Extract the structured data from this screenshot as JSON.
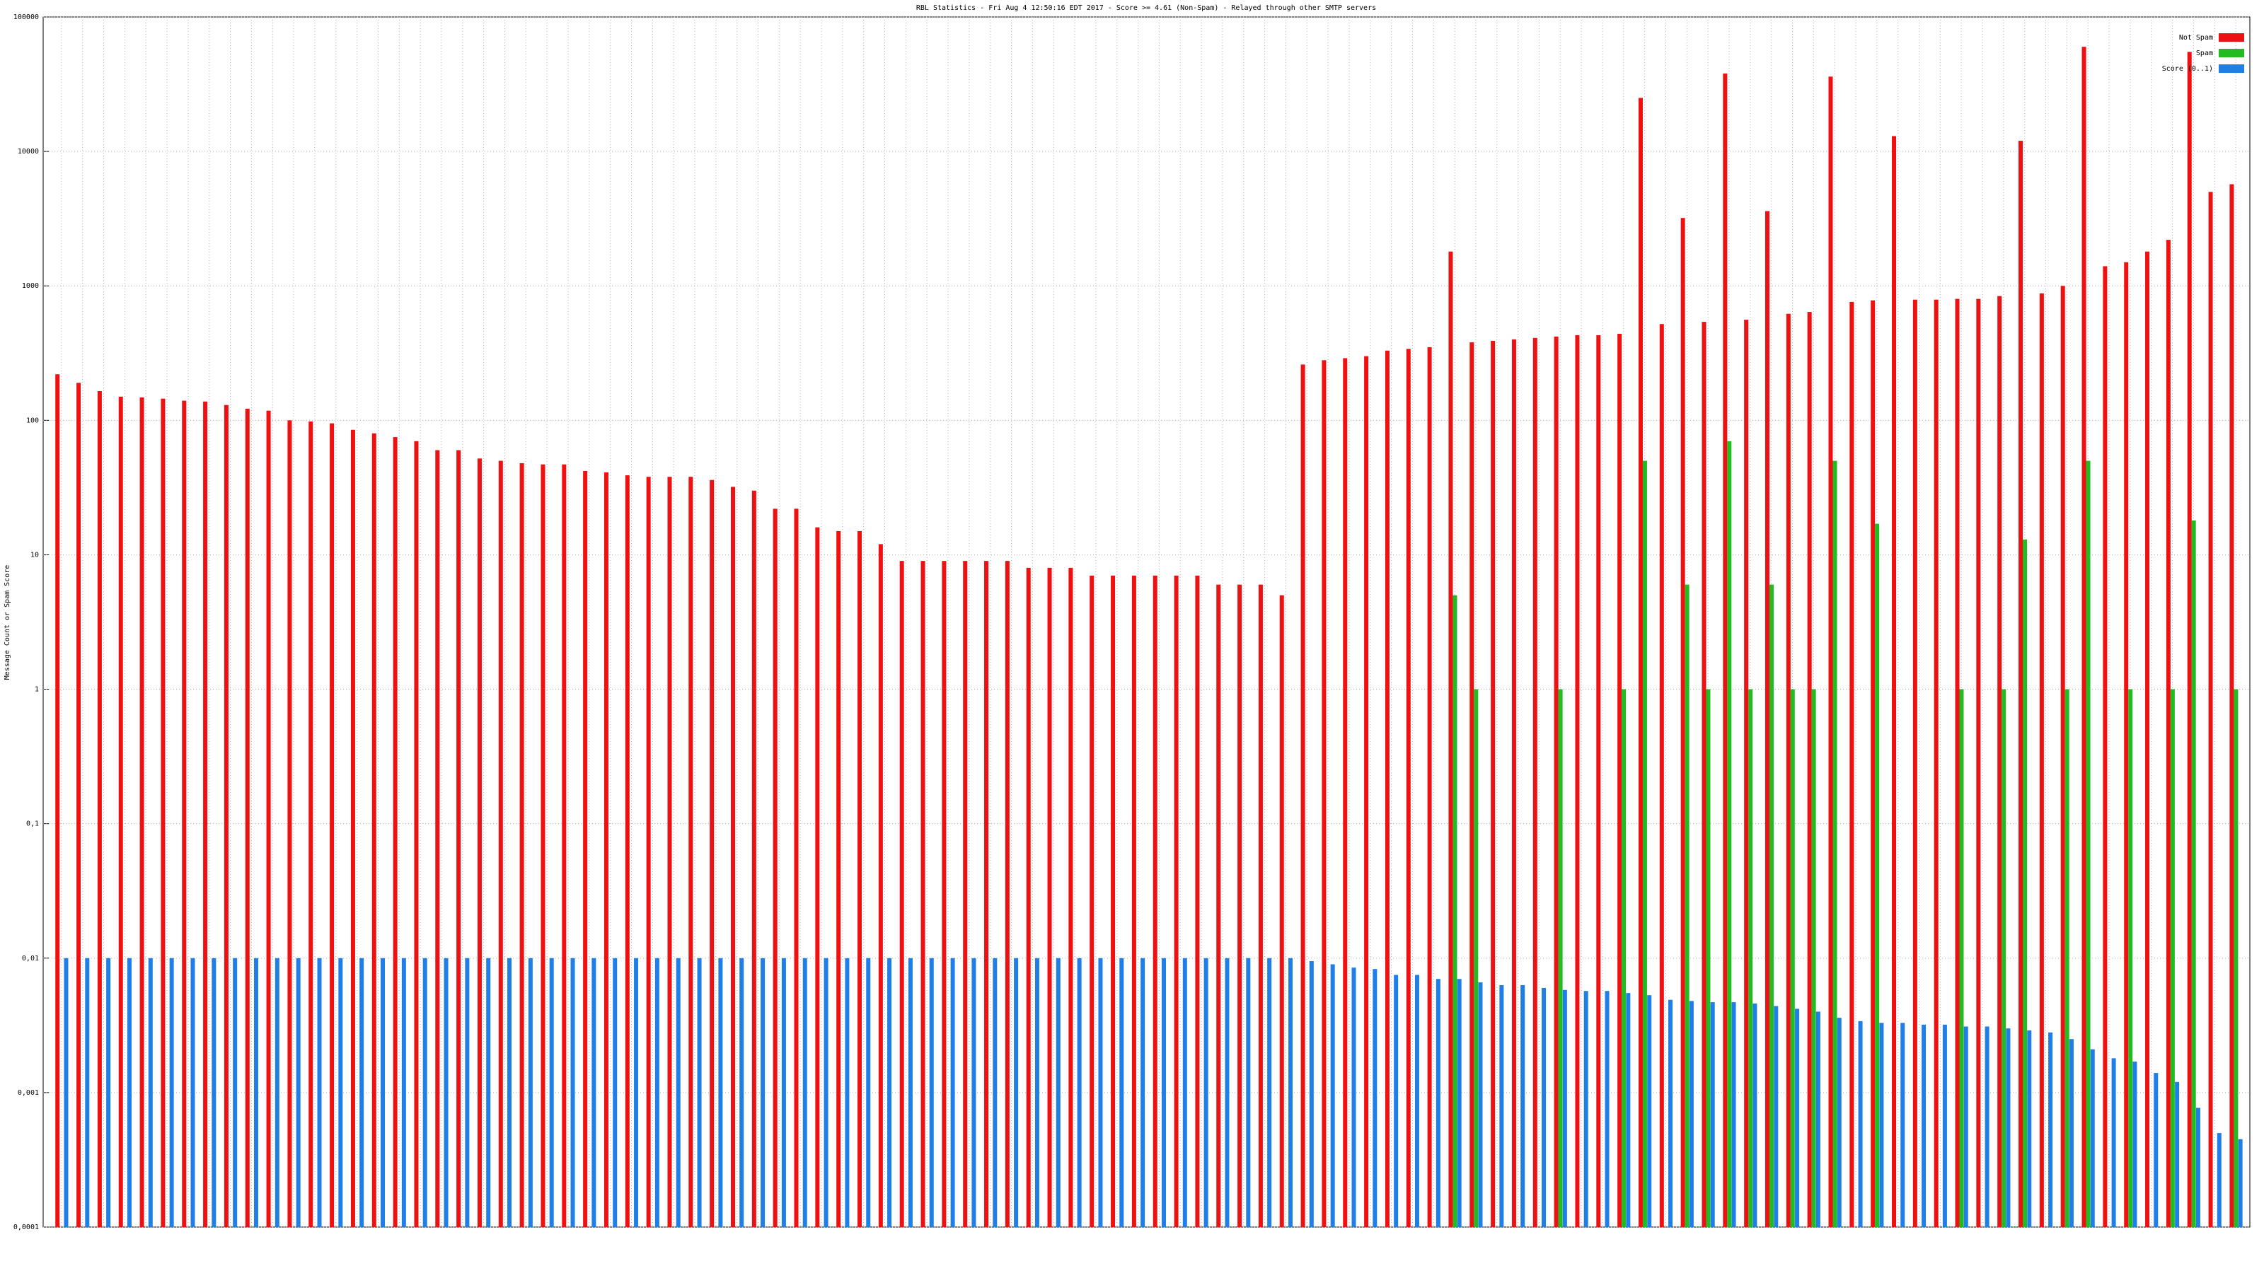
{
  "chart_data": {
    "type": "bar",
    "title": "RBL Statistics - Fri Aug  4 12:50:16 EDT 2017 - Score >= 4.61 (Non-Spam) - Relayed through other SMTP servers",
    "y_label": "Message Count or Spam Score",
    "log_scale": true,
    "grid": true,
    "legend": "top-right",
    "ylim": [
      0.0001,
      100000
    ],
    "yticks": [
      {
        "value": 0.0001,
        "label": "0,0001"
      },
      {
        "value": 0.001,
        "label": "0,001"
      },
      {
        "value": 0.01,
        "label": "0,01"
      },
      {
        "value": 0.1,
        "label": "0,1"
      },
      1,
      10,
      100,
      1000,
      10000,
      100000
    ],
    "categories": [
      null,
      null,
      null,
      null,
      null,
      null,
      null,
      null,
      null,
      null,
      null,
      null,
      null,
      null,
      null,
      null,
      null,
      null,
      null,
      null,
      null,
      null,
      null,
      null,
      null,
      null,
      null,
      null,
      null,
      null,
      null,
      null,
      null,
      null,
      null,
      null,
      null,
      null,
      null,
      null,
      null,
      null,
      null,
      null,
      null,
      null,
      null,
      null,
      null,
      null,
      null,
      null,
      null,
      null,
      null,
      null,
      null,
      null,
      null,
      null,
      null,
      null,
      null,
      null,
      null,
      null,
      null,
      null,
      null,
      null,
      null,
      null,
      null,
      null,
      null,
      null,
      null,
      null,
      null,
      null,
      null,
      null,
      null,
      null,
      null,
      null,
      null,
      null,
      null,
      null,
      null,
      null,
      null,
      null,
      null,
      null,
      null,
      null,
      null,
      null,
      null,
      null,
      null,
      null
    ],
    "series": [
      {
        "name": "Not Spam",
        "color": "#ee1111",
        "values": [
          220,
          190,
          165,
          150,
          148,
          145,
          140,
          138,
          130,
          122,
          118,
          100,
          98,
          95,
          85,
          80,
          75,
          70,
          60,
          60,
          52,
          50,
          48,
          47,
          47,
          42,
          41,
          39,
          38,
          38,
          38,
          36,
          32,
          30,
          22,
          22,
          16,
          15,
          15,
          12,
          9,
          9,
          9,
          9,
          9,
          9,
          8,
          8,
          8,
          7,
          7,
          7,
          7,
          7,
          7,
          6,
          6,
          6,
          5,
          260,
          280,
          290,
          300,
          330,
          340,
          350,
          1800,
          380,
          390,
          400,
          410,
          420,
          430,
          430,
          440,
          25000,
          520,
          3200,
          540,
          38000,
          560,
          3600,
          620,
          640,
          36000,
          760,
          780,
          13000,
          790,
          790,
          800,
          800,
          840,
          12000,
          880,
          1000,
          60000,
          1400,
          1500,
          1800,
          2200,
          55000,
          5000,
          5700
        ]
      },
      {
        "name": "Spam",
        "color": "#22bb22",
        "values": [
          null,
          null,
          null,
          null,
          null,
          null,
          null,
          null,
          null,
          null,
          null,
          null,
          null,
          null,
          null,
          null,
          null,
          null,
          null,
          null,
          null,
          null,
          null,
          null,
          null,
          null,
          null,
          null,
          null,
          null,
          null,
          null,
          null,
          null,
          null,
          null,
          null,
          null,
          null,
          null,
          null,
          null,
          null,
          null,
          null,
          null,
          null,
          null,
          null,
          null,
          null,
          null,
          null,
          null,
          null,
          null,
          null,
          null,
          null,
          null,
          null,
          null,
          null,
          null,
          null,
          null,
          5,
          1,
          null,
          null,
          null,
          1,
          null,
          null,
          1,
          50,
          null,
          6,
          1,
          70,
          1,
          6,
          1,
          1,
          50,
          null,
          17,
          null,
          null,
          null,
          1,
          null,
          1,
          13,
          null,
          1,
          50,
          null,
          1,
          null,
          1,
          18,
          null,
          1
        ]
      },
      {
        "name": "Score (0..1)",
        "color": "#1f7fe6",
        "values": [
          0.01,
          0.01,
          0.01,
          0.01,
          0.01,
          0.01,
          0.01,
          0.01,
          0.01,
          0.01,
          0.01,
          0.01,
          0.01,
          0.01,
          0.01,
          0.01,
          0.01,
          0.01,
          0.01,
          0.01,
          0.01,
          0.01,
          0.01,
          0.01,
          0.01,
          0.01,
          0.01,
          0.01,
          0.01,
          0.01,
          0.01,
          0.01,
          0.01,
          0.01,
          0.01,
          0.01,
          0.01,
          0.01,
          0.01,
          0.01,
          0.01,
          0.01,
          0.01,
          0.01,
          0.01,
          0.01,
          0.01,
          0.01,
          0.01,
          0.01,
          0.01,
          0.01,
          0.01,
          0.01,
          0.01,
          0.01,
          0.01,
          0.01,
          0.01,
          0.0095,
          0.009,
          0.0085,
          0.0083,
          0.0075,
          0.0075,
          0.007,
          0.007,
          0.0066,
          0.0063,
          0.0063,
          0.006,
          0.0058,
          0.0057,
          0.0057,
          0.0055,
          0.0053,
          0.0049,
          0.0048,
          0.0047,
          0.0047,
          0.0046,
          0.0044,
          0.0042,
          0.004,
          0.0036,
          0.0034,
          0.0033,
          0.0033,
          0.0032,
          0.0032,
          0.0031,
          0.0031,
          0.003,
          0.0029,
          0.0028,
          0.0025,
          0.0021,
          0.0018,
          0.0017,
          0.0014,
          0.0012,
          0.00077,
          0.0005,
          0.00045
        ]
      }
    ]
  }
}
